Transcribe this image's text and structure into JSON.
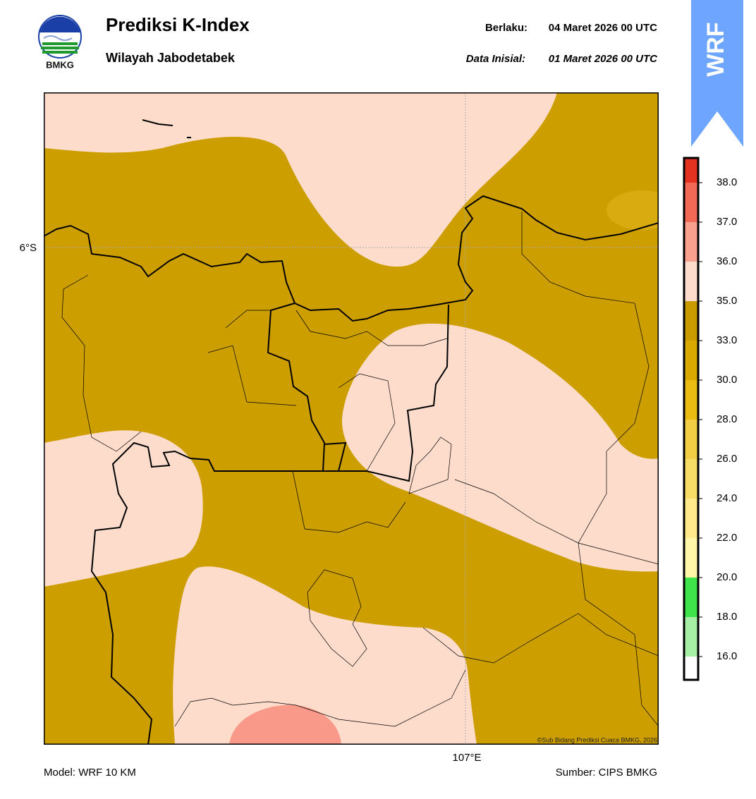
{
  "header": {
    "logo_text": "BMKG",
    "title": "Prediksi K-Index",
    "subtitle": "Wilayah Jabodetabek",
    "valid_label": "Berlaku:",
    "valid_time": "04 Maret 2026 00 UTC",
    "init_label": "Data Inisial:",
    "init_time": "01 Maret 2026 00 UTC",
    "badge": "WRF"
  },
  "map": {
    "lat_label": "6°S",
    "lon_label": "107°E",
    "copyright": "©Sub Bidang Prediksi Cuaca BMKG, 2026"
  },
  "colorbar": {
    "ticks": [
      {
        "value": 16,
        "label": "16.0"
      },
      {
        "value": 18,
        "label": "18.0"
      },
      {
        "value": 20,
        "label": "20.0"
      },
      {
        "value": 22,
        "label": "22.0"
      },
      {
        "value": 24,
        "label": "24.0"
      },
      {
        "value": 26,
        "label": "26.0"
      },
      {
        "value": 28,
        "label": "28.0"
      },
      {
        "value": 30,
        "label": "30.0"
      },
      {
        "value": 33,
        "label": "33.0"
      },
      {
        "value": 35,
        "label": "35.0"
      },
      {
        "value": 36,
        "label": "36.0"
      },
      {
        "value": 37,
        "label": "37.0"
      },
      {
        "value": 38,
        "label": "38.0"
      }
    ],
    "colors": [
      "#ffffff",
      "#a6f0a6",
      "#3ee44a",
      "#fff6a8",
      "#ffe98a",
      "#f7dc66",
      "#f2ce44",
      "#eabc12",
      "#d9a900",
      "#c99b00",
      "#fddccb",
      "#f9a18e",
      "#f26a55",
      "#e3321f"
    ]
  },
  "footer": {
    "model": "Model: WRF 10 KM",
    "source": "Sumber: CIPS BMKG"
  }
}
